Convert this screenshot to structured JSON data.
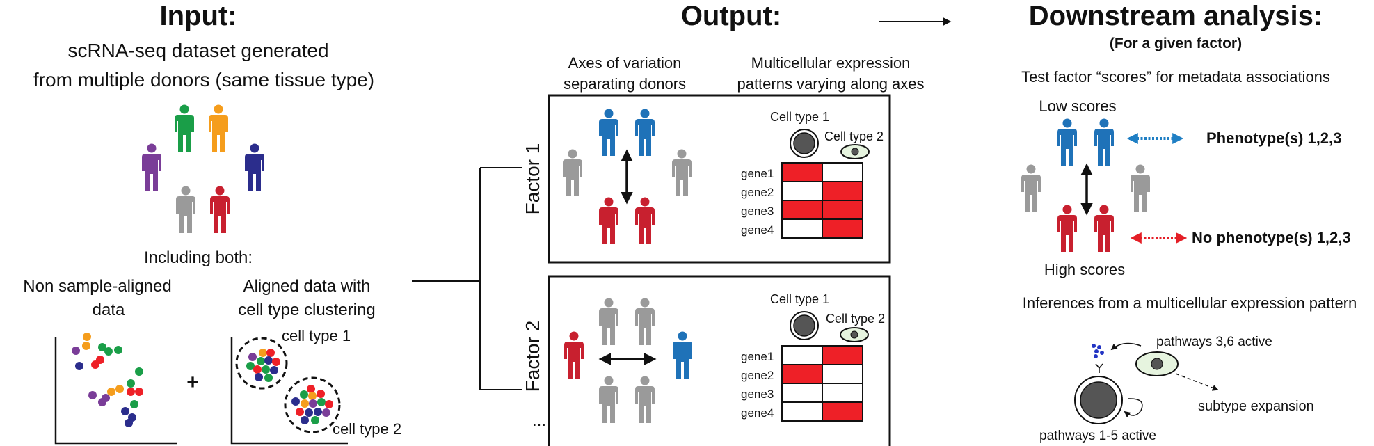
{
  "input": {
    "heading": "Input:",
    "desc_line1": "scRNA-seq dataset generated",
    "desc_line2": "from multiple donors (same tissue type)",
    "including": "Including both:",
    "non_aligned_line1": "Non sample-aligned",
    "non_aligned_line2": "data",
    "aligned_line1": "Aligned data with",
    "aligned_line2": "cell type clustering",
    "plus": "+",
    "cell_type_1": "cell type 1",
    "cell_type_2": "cell type 2"
  },
  "output": {
    "heading": "Output:",
    "col1_line1": "Axes of variation",
    "col1_line2": "separating donors",
    "col2_line1": "Multicellular expression",
    "col2_line2": "patterns varying along axes",
    "factor1": "Factor 1",
    "factor2": "Factor 2",
    "ellipsis": "...",
    "cell_type_1": "Cell type 1",
    "cell_type_2": "Cell type 2",
    "genes": [
      "gene1",
      "gene2",
      "gene3",
      "gene4"
    ],
    "factor1_matrix": [
      [
        1,
        0
      ],
      [
        0,
        1
      ],
      [
        1,
        1
      ],
      [
        0,
        1
      ]
    ],
    "factor2_matrix": [
      [
        0,
        1
      ],
      [
        1,
        0
      ],
      [
        0,
        0
      ],
      [
        0,
        1
      ]
    ]
  },
  "downstream": {
    "heading": "Downstream analysis:",
    "subheading": "(For a given factor)",
    "test_text": "Test factor “scores” for metadata associations",
    "low_scores": "Low scores",
    "high_scores": "High scores",
    "phenotype": "Phenotype(s) 1,2,3",
    "no_phenotype": "No phenotype(s) 1,2,3",
    "inferences": "Inferences from a multicellular expression pattern",
    "pathways_36": "pathways 3,6 active",
    "subtype": "subtype expansion",
    "pathways_15": "pathways 1-5 active"
  },
  "colors": {
    "green": "#1a9e48",
    "orange": "#f59d1c",
    "purple": "#7a3d98",
    "navy": "#2b2d8c",
    "gray": "#9a9a9a",
    "red": "#c8202f",
    "blue": "#1f72b8",
    "cell_red": "#ee2027",
    "pheno_blue": "#1f7fc4",
    "pheno_red": "#e41e26"
  }
}
